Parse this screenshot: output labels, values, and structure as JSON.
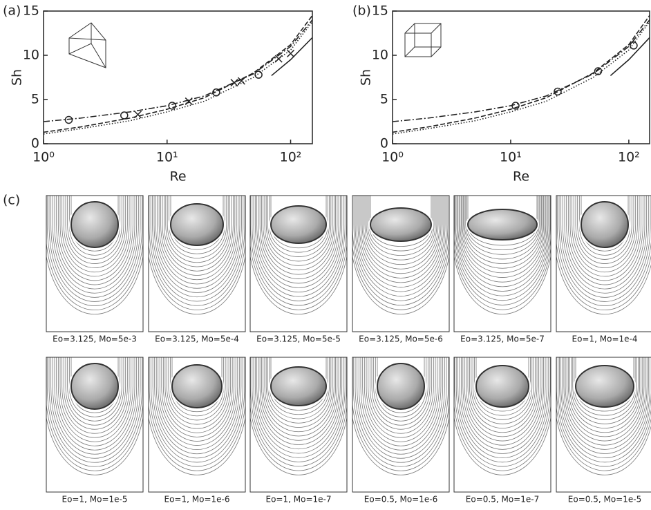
{
  "chart_data": [
    {
      "type": "line",
      "panel_label": "(a)",
      "xlabel": "Re",
      "ylabel": "Sh",
      "xscale": "log",
      "xlim": [
        1,
        150
      ],
      "ylim": [
        0,
        15
      ],
      "xticks": [
        {
          "value": 1,
          "label": "10⁰"
        },
        {
          "value": 10,
          "label": "10¹"
        },
        {
          "value": 100,
          "label": "10²"
        }
      ],
      "yticks": [
        0,
        5,
        10,
        15
      ],
      "series": [
        {
          "style": "dash-dot",
          "color": "#222",
          "x": [
            1,
            2,
            5,
            10,
            20,
            50,
            100,
            150
          ],
          "values": [
            2.5,
            2.9,
            3.6,
            4.3,
            5.4,
            7.9,
            11,
            14
          ]
        },
        {
          "style": "dashed",
          "color": "#222",
          "x": [
            1,
            2,
            5,
            10,
            20,
            50,
            100,
            150
          ],
          "values": [
            1.3,
            1.9,
            2.9,
            3.9,
            5.2,
            8,
            11.2,
            14.5
          ]
        },
        {
          "style": "dotted",
          "color": "#222",
          "x": [
            1,
            2,
            5,
            10,
            20,
            50,
            100,
            150
          ],
          "values": [
            1.1,
            1.7,
            2.6,
            3.6,
            4.8,
            7.5,
            10.6,
            13.8
          ]
        },
        {
          "style": "solid",
          "color": "#222",
          "x": [
            70,
            100,
            150
          ],
          "values": [
            7.7,
            9.5,
            12
          ]
        },
        {
          "marker": "circle",
          "color": "#222",
          "x": [
            1.6,
            4.5,
            11,
            25,
            55
          ],
          "values": [
            2.7,
            3.2,
            4.3,
            5.8,
            7.8
          ]
        },
        {
          "marker": "cross",
          "color": "#222",
          "x": [
            5.8,
            15,
            35,
            40,
            80,
            100
          ],
          "values": [
            3.3,
            4.8,
            6.9,
            7.1,
            9.6,
            10.2
          ]
        }
      ]
    },
    {
      "type": "line",
      "panel_label": "(b)",
      "xlabel": "Re",
      "ylabel": "Sh",
      "xscale": "log",
      "xlim": [
        1,
        150
      ],
      "ylim": [
        0,
        15
      ],
      "xticks": [
        {
          "value": 1,
          "label": "10⁰"
        },
        {
          "value": 10,
          "label": "10¹"
        },
        {
          "value": 100,
          "label": "10²"
        }
      ],
      "yticks": [
        0,
        5,
        10,
        15
      ],
      "series": [
        {
          "style": "dash-dot",
          "color": "#222",
          "x": [
            1,
            2,
            5,
            10,
            20,
            50,
            100,
            150
          ],
          "values": [
            2.5,
            2.9,
            3.6,
            4.3,
            5.4,
            7.9,
            11,
            14
          ]
        },
        {
          "style": "dashed",
          "color": "#222",
          "x": [
            1,
            2,
            5,
            10,
            20,
            50,
            100,
            150
          ],
          "values": [
            1.3,
            1.9,
            2.9,
            3.9,
            5.2,
            8,
            11.2,
            14.5
          ]
        },
        {
          "style": "dotted",
          "color": "#222",
          "x": [
            1,
            2,
            5,
            10,
            20,
            50,
            100,
            150
          ],
          "values": [
            1.1,
            1.7,
            2.6,
            3.6,
            4.8,
            7.5,
            10.6,
            13.8
          ]
        },
        {
          "style": "solid",
          "color": "#222",
          "x": [
            70,
            100,
            150
          ],
          "values": [
            7.7,
            9.5,
            12
          ]
        },
        {
          "marker": "circle",
          "color": "#222",
          "x": [
            11,
            25,
            55,
            110
          ],
          "values": [
            4.3,
            5.9,
            8.2,
            11.1
          ]
        }
      ]
    }
  ],
  "panel_c": {
    "label": "(c)",
    "panels": [
      {
        "caption": "Eo=3.125, Mo=5e-3"
      },
      {
        "caption": "Eo=3.125, Mo=5e-4"
      },
      {
        "caption": "Eo=3.125, Mo=5e-5"
      },
      {
        "caption": "Eo=3.125, Mo=5e-6"
      },
      {
        "caption": "Eo=3.125, Mo=5e-7"
      },
      {
        "caption": "Eo=1, Mo=1e-4"
      },
      {
        "caption": "Eo=1, Mo=1e-5"
      },
      {
        "caption": "Eo=1, Mo=1e-6"
      },
      {
        "caption": "Eo=1, Mo=1e-7"
      },
      {
        "caption": "Eo=0.5, Mo=1e-6"
      },
      {
        "caption": "Eo=0.5, Mo=1e-7"
      },
      {
        "caption": "Eo=0.5, Mo=1e-5"
      }
    ]
  }
}
